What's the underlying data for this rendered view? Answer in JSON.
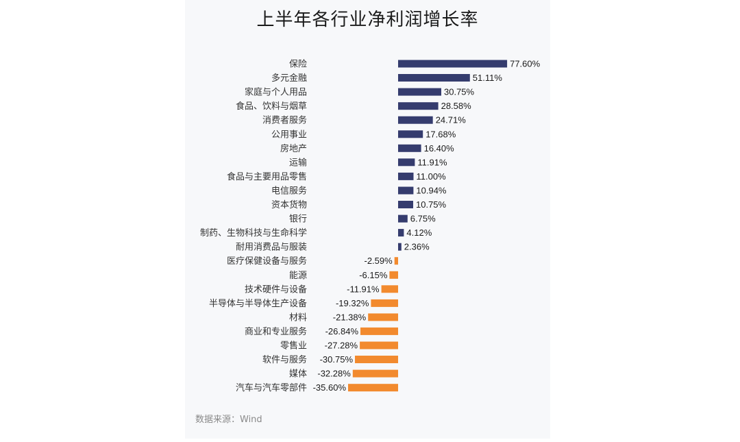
{
  "chart_data": {
    "type": "bar",
    "orientation": "horizontal",
    "title": "上半年各行业净利润增长率",
    "source": "数据来源：Wind",
    "unit": "%",
    "colors": {
      "positive": "#353c6e",
      "negative": "#f28a2e"
    },
    "categories": [
      "保险",
      "多元金融",
      "家庭与个人用品",
      "食品、饮料与烟草",
      "消费者服务",
      "公用事业",
      "房地产",
      "运输",
      "食品与主要用品零售",
      "电信服务",
      "资本货物",
      "银行",
      "制药、生物科技与生命科学",
      "耐用消费品与服装",
      "医疗保健设备与服务",
      "能源",
      "技术硬件与设备",
      "半导体与半导体生产设备",
      "材料",
      "商业和专业服务",
      "零售业",
      "软件与服务",
      "媒体",
      "汽车与汽车零部件"
    ],
    "values": [
      77.6,
      51.11,
      30.75,
      28.58,
      24.71,
      17.68,
      16.4,
      11.91,
      11.0,
      10.94,
      10.75,
      6.75,
      4.12,
      2.36,
      -2.59,
      -6.15,
      -11.91,
      -19.32,
      -21.38,
      -26.84,
      -27.28,
      -30.75,
      -32.28,
      -35.6
    ],
    "labels": [
      "77.60%",
      "51.11%",
      "30.75%",
      "28.58%",
      "24.71%",
      "17.68%",
      "16.40%",
      "11.91%",
      "11.00%",
      "10.94%",
      "10.75%",
      "6.75%",
      "4.12%",
      "2.36%",
      "-2.59%",
      "-6.15%",
      "-11.91%",
      "-19.32%",
      "-21.38%",
      "-26.84%",
      "-27.28%",
      "-30.75%",
      "-32.28%",
      "-35.60%"
    ]
  }
}
